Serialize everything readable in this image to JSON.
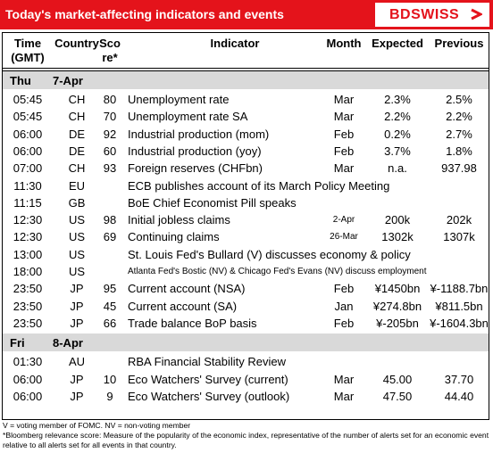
{
  "header": {
    "title": "Today's market-affecting indicators and events",
    "logo": "BDSWISS"
  },
  "table": {
    "columns": [
      [
        "Time",
        "(GMT)"
      ],
      [
        "Country"
      ],
      [
        "Sco",
        "re*"
      ],
      [
        "Indicator"
      ],
      [
        "Month"
      ],
      [
        "Expected"
      ],
      [
        "Previous"
      ]
    ],
    "groups": [
      {
        "day": "Thu",
        "date": "7-Apr",
        "rows": [
          {
            "time": "05:45",
            "country": "CH",
            "score": 80,
            "indicator": "Unemployment rate",
            "month": "Mar",
            "expected": "2.3%",
            "previous": "2.5%"
          },
          {
            "time": "05:45",
            "country": "CH",
            "score": 70,
            "indicator": "Unemployment rate SA",
            "month": "Mar",
            "expected": "2.2%",
            "previous": "2.2%"
          },
          {
            "time": "06:00",
            "country": "DE",
            "score": 92,
            "indicator": "Industrial production (mom)",
            "month": "Feb",
            "expected": "0.2%",
            "previous": "2.7%"
          },
          {
            "time": "06:00",
            "country": "DE",
            "score": 60,
            "indicator": "Industrial production (yoy)",
            "month": "Feb",
            "expected": "3.7%",
            "previous": "1.8%"
          },
          {
            "time": "07:00",
            "country": "CH",
            "score": 93,
            "indicator": "Foreign reserves (CHFbn)",
            "month": "Mar",
            "expected": "n.a.",
            "previous": "937.98"
          },
          {
            "time": "11:30",
            "country": "EU",
            "indicator": "ECB publishes account of its March Policy Meeting"
          },
          {
            "time": "11:15",
            "country": "GB",
            "indicator": "BoE Chief Economist Pill speaks"
          },
          {
            "time": "12:30",
            "country": "US",
            "score": 98,
            "indicator": "Initial jobless claims",
            "month": "2-Apr",
            "expected": "200k",
            "previous": "202k"
          },
          {
            "time": "12:30",
            "country": "US",
            "score": 69,
            "indicator": "Continuing claims",
            "month": "26-Mar",
            "expected": "1302k",
            "previous": "1307k"
          },
          {
            "time": "13:00",
            "country": "US",
            "indicator": "St. Louis Fed's Bullard (V) discusses economy & policy"
          },
          {
            "time": "18:00",
            "country": "US",
            "indicator": "Atlanta Fed's Bostic (NV) & Chicago Fed's Evans (NV) discuss employment"
          },
          {
            "time": "23:50",
            "country": "JP",
            "score": 95,
            "indicator": "Current account  (NSA)",
            "month": "Feb",
            "expected": "¥1450bn",
            "previous": "¥-1188.7bn"
          },
          {
            "time": "23:50",
            "country": "JP",
            "score": 45,
            "indicator": "Current account  (SA)",
            "month": "Jan",
            "expected": "¥274.8bn",
            "previous": "¥811.5bn"
          },
          {
            "time": "23:50",
            "country": "JP",
            "score": 66,
            "indicator": "Trade balance BoP basis",
            "month": "Feb",
            "expected": "¥-205bn",
            "previous": "¥-1604.3bn"
          }
        ]
      },
      {
        "day": "Fri",
        "date": "8-Apr",
        "rows": [
          {
            "time": "01:30",
            "country": "AU",
            "indicator": "RBA Financial Stability Review"
          },
          {
            "time": "06:00",
            "country": "JP",
            "score": 10,
            "indicator": "Eco Watchers' Survey (current)",
            "month": "Mar",
            "expected": "45.00",
            "previous": "37.70"
          },
          {
            "time": "06:00",
            "country": "JP",
            "score": 9,
            "indicator": "Eco Watchers' Survey (outlook)",
            "month": "Mar",
            "expected": "47.50",
            "previous": "44.40"
          }
        ]
      }
    ]
  },
  "footnotes": [
    "V = voting member of FOMC. NV = non-voting member",
    "*Bloomberg relevance score:  Measure of the popularity of the economic index, representative of the number of alerts set for an economic event relative to all alerts set for all events in that country."
  ]
}
